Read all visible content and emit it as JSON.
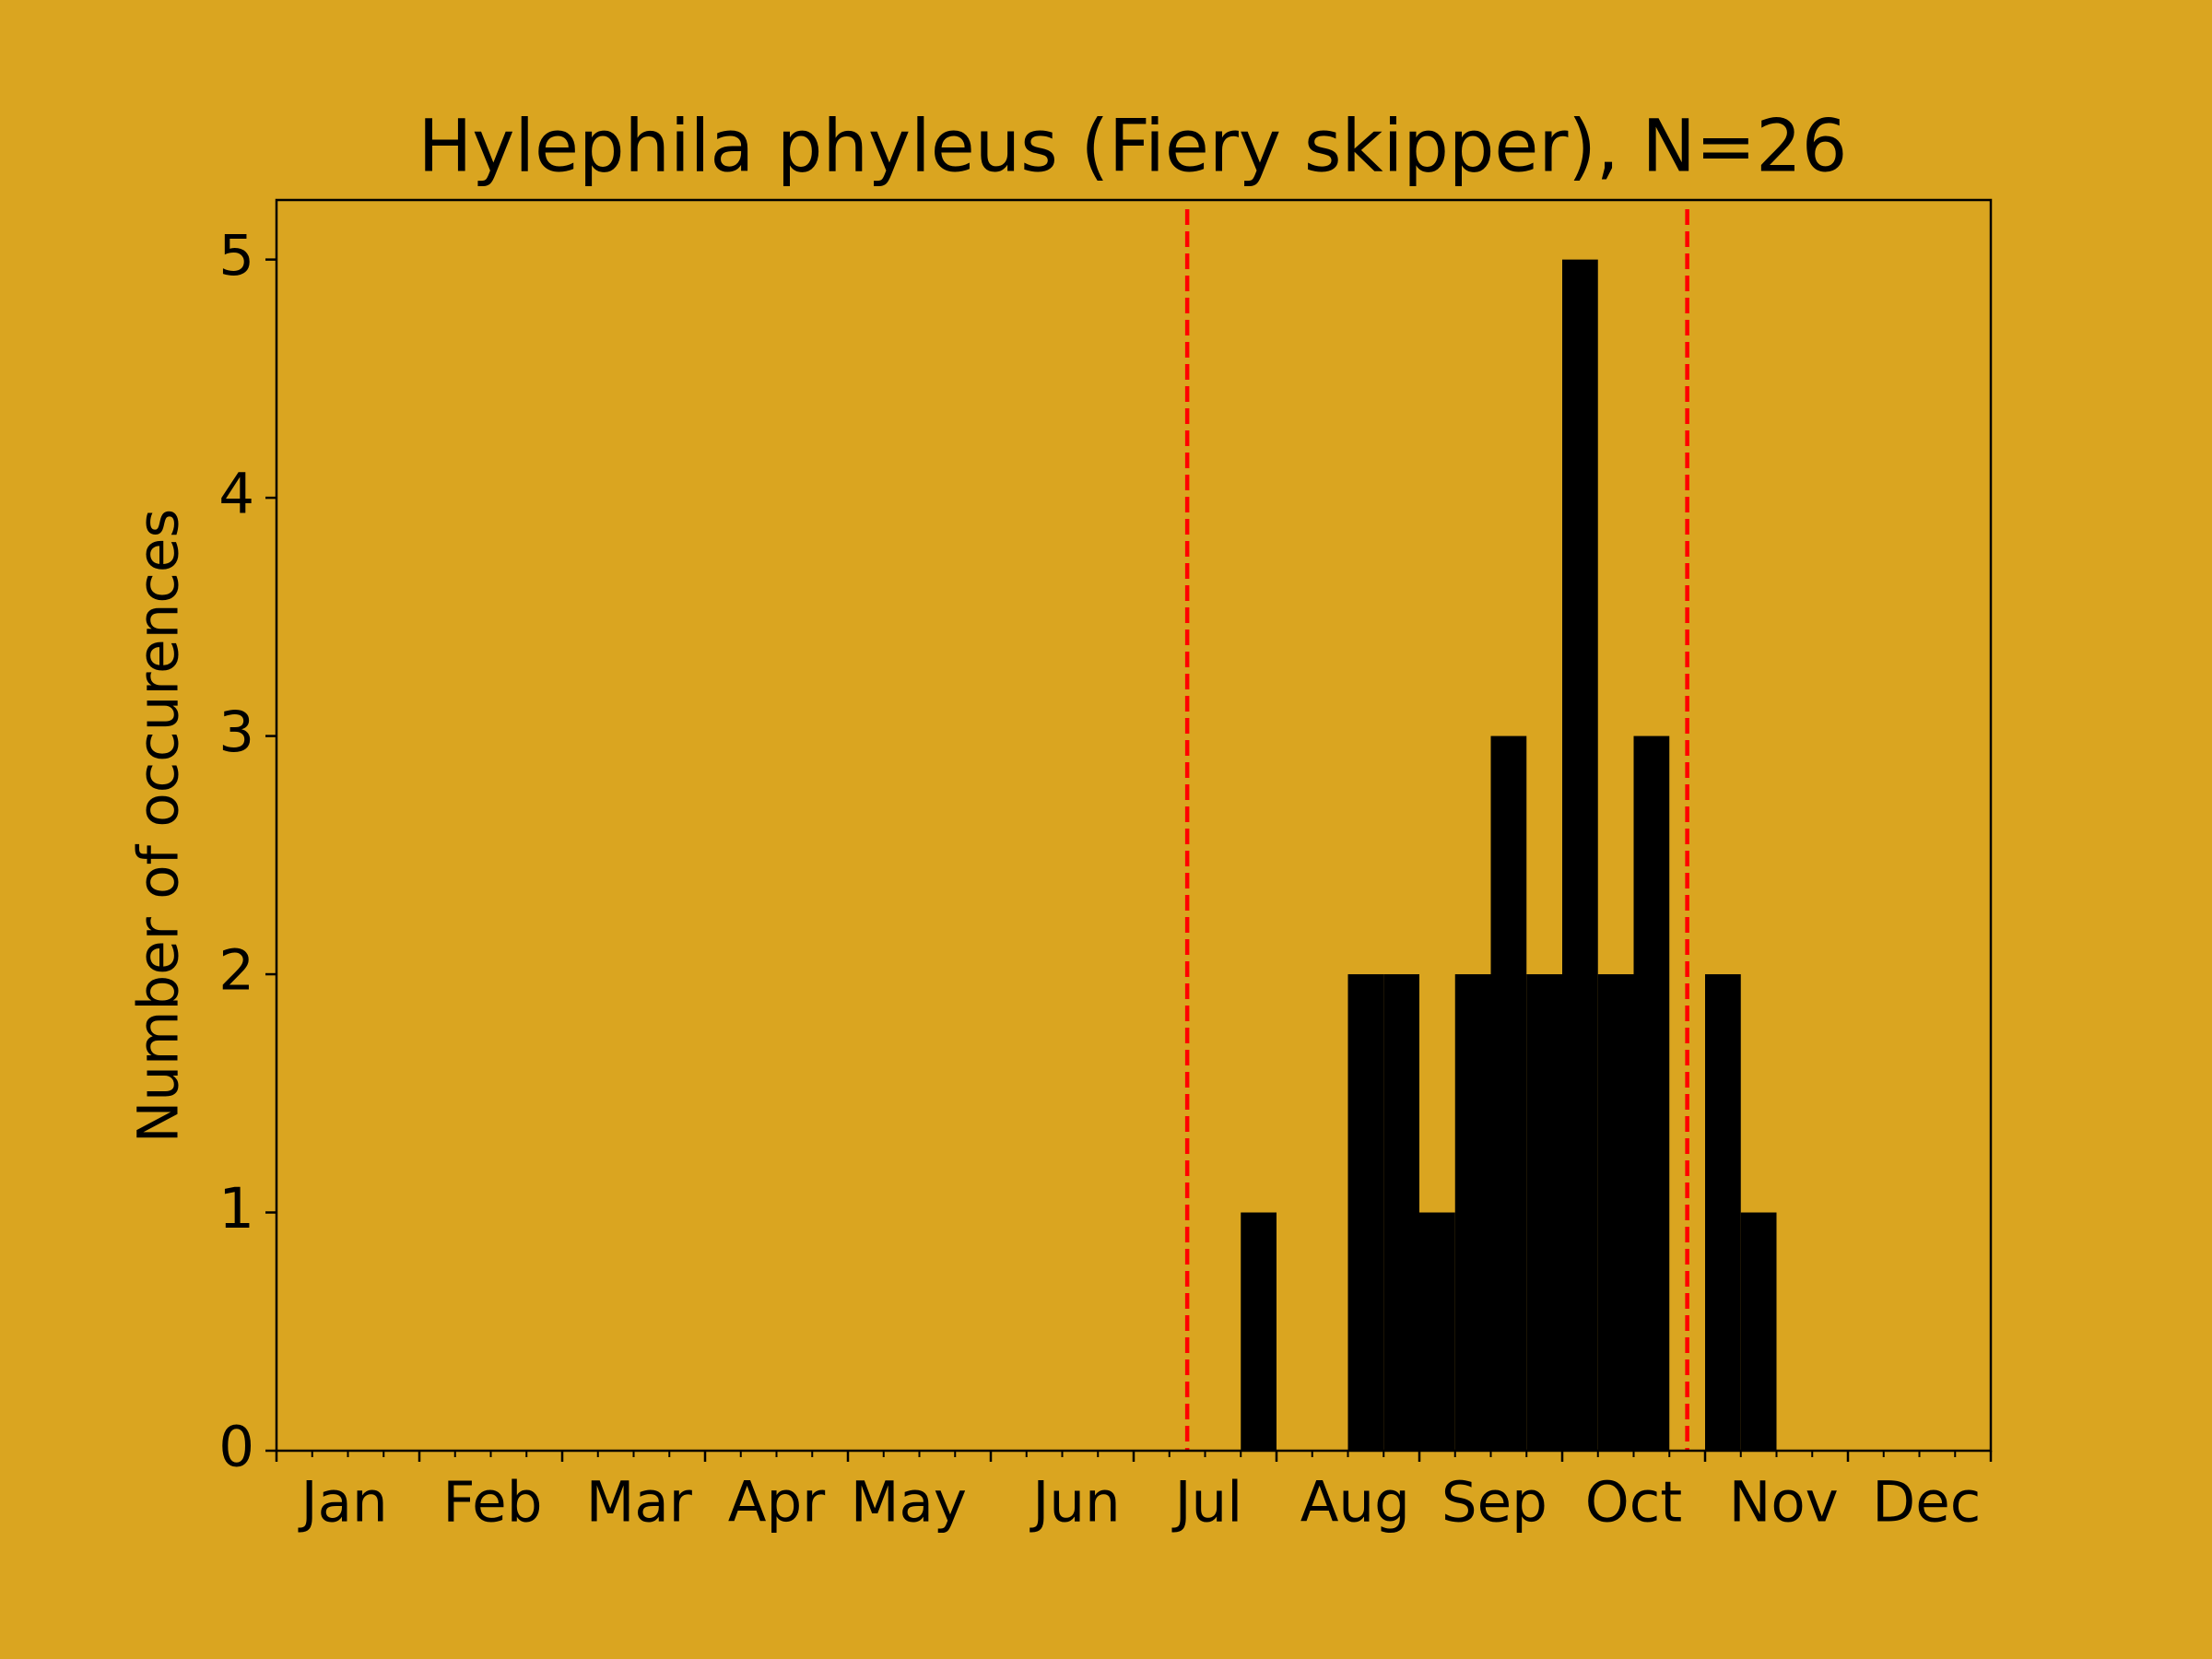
{
  "chart_data": {
    "type": "histogram",
    "title": "Hylephila phyleus (Fiery skipper), N=26",
    "y_label": "Number of occurences",
    "bins": [
      27,
      28,
      29,
      30,
      31,
      32,
      33,
      34,
      35,
      36,
      37,
      38,
      39,
      40,
      41,
      42
    ],
    "values": [
      1,
      0,
      0,
      2,
      2,
      1,
      2,
      3,
      2,
      5,
      2,
      3,
      0,
      2,
      1
    ],
    "color": "#000000",
    "background": "#daa520",
    "xlim": [
      0,
      48
    ],
    "xticks": [
      {
        "value": 1.9,
        "label": "Jan"
      },
      {
        "value": 6.05,
        "label": "Feb"
      },
      {
        "value": 10.15,
        "label": "Mar"
      },
      {
        "value": 14,
        "label": "Apr"
      },
      {
        "value": 17.7,
        "label": "May"
      },
      {
        "value": 22.4,
        "label": "Jun"
      },
      {
        "value": 26.1,
        "label": "Jul"
      },
      {
        "value": 30.2,
        "label": "Aug"
      },
      {
        "value": 34.1,
        "label": "Sep"
      },
      {
        "value": 38,
        "label": "Oct"
      },
      {
        "value": 42.2,
        "label": "Nov"
      },
      {
        "value": 46.2,
        "label": "Dec"
      }
    ],
    "xticks_major": [
      0,
      4,
      8,
      12,
      16,
      20,
      24,
      28,
      32,
      36,
      40,
      44,
      48
    ],
    "xticks_minor_step": 1,
    "ylim": [
      0,
      5.25
    ],
    "yticks": [
      0,
      1,
      2,
      3,
      4,
      5
    ],
    "vlines": [
      25.5,
      39.5
    ],
    "vline_color": "#ff0000"
  }
}
